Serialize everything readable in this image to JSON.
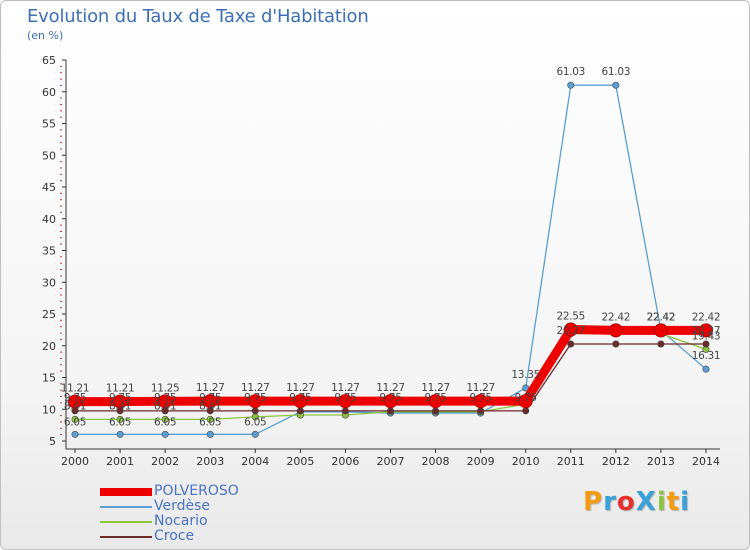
{
  "header": {
    "title": "Evolution du Taux de Taxe d'Habitation",
    "subtitle": "(en %)"
  },
  "chart_data": {
    "type": "line",
    "title": "Evolution du Taux de Taxe d'Habitation",
    "ylabel": "(en %)",
    "xlabel": "",
    "ylim": [
      5,
      65
    ],
    "yticks": [
      5,
      10,
      15,
      20,
      25,
      30,
      35,
      40,
      45,
      50,
      55,
      60,
      65
    ],
    "grid": false,
    "categories": [
      "2000",
      "2001",
      "2002",
      "2003",
      "2004",
      "2005",
      "2006",
      "2007",
      "2008",
      "2009",
      "2010",
      "2011",
      "2012",
      "2013",
      "2014"
    ],
    "series": [
      {
        "name": "POLVEROSO",
        "color": "#ee0000",
        "values": [
          11.21,
          11.21,
          11.25,
          11.27,
          11.27,
          11.27,
          11.27,
          11.27,
          11.27,
          11.27,
          11.27,
          22.55,
          22.42,
          22.42,
          22.42
        ],
        "labels": [
          "11.21",
          "11.21",
          "11.25",
          "11.27",
          "11.27",
          "11.27",
          "11.27",
          "11.27",
          "11.27",
          "11.27",
          "",
          "22.55",
          "22.42",
          "22.42",
          "22.42"
        ]
      },
      {
        "name": "Verdèse",
        "color": "#5a9fd4",
        "values": [
          6.05,
          6.05,
          6.05,
          6.05,
          6.05,
          9.6,
          9.6,
          9.4,
          9.4,
          9.4,
          13.35,
          61.03,
          61.03,
          22.42,
          16.31
        ],
        "labels": [
          "6.05",
          "6.05",
          "6.05",
          "6.05",
          "6.05",
          "",
          "",
          "",
          "",
          "",
          "13.35",
          "61.03",
          "61.03",
          "22.42",
          "16.31"
        ]
      },
      {
        "name": "Nocario",
        "color": "#8cc63e",
        "values": [
          8.41,
          8.41,
          8.41,
          8.41,
          8.8,
          9.1,
          9.1,
          9.6,
          9.6,
          9.6,
          10.8,
          21.91,
          21.91,
          21.91,
          19.43
        ],
        "labels": [
          "8.41",
          "8.41",
          "8.41",
          "8.41",
          "",
          "",
          "",
          "",
          "",
          "",
          "",
          "",
          "",
          "",
          "19.43"
        ]
      },
      {
        "name": "Croce",
        "color": "#6b2b2b",
        "values": [
          9.75,
          9.75,
          9.75,
          9.75,
          9.75,
          9.75,
          9.75,
          9.75,
          9.75,
          9.75,
          9.75,
          20.27,
          20.27,
          20.27,
          20.27
        ],
        "labels": [
          "9.75",
          "9.75",
          "9.75",
          "9.75",
          "9.75",
          "9.75",
          "9.75",
          "9.75",
          "9.75",
          "9.75",
          "9.75",
          "20.27",
          "",
          "",
          "20.27"
        ]
      }
    ]
  },
  "logo": {
    "text": "ProXiti",
    "letters": [
      "P",
      "r",
      "o",
      "X",
      "i",
      "t",
      "i"
    ],
    "colors": [
      "#f39c12",
      "#3aa0d8",
      "#e7302a",
      "#3aa0d8",
      "#8cc63e",
      "#f39c12",
      "#3aa0d8"
    ]
  }
}
